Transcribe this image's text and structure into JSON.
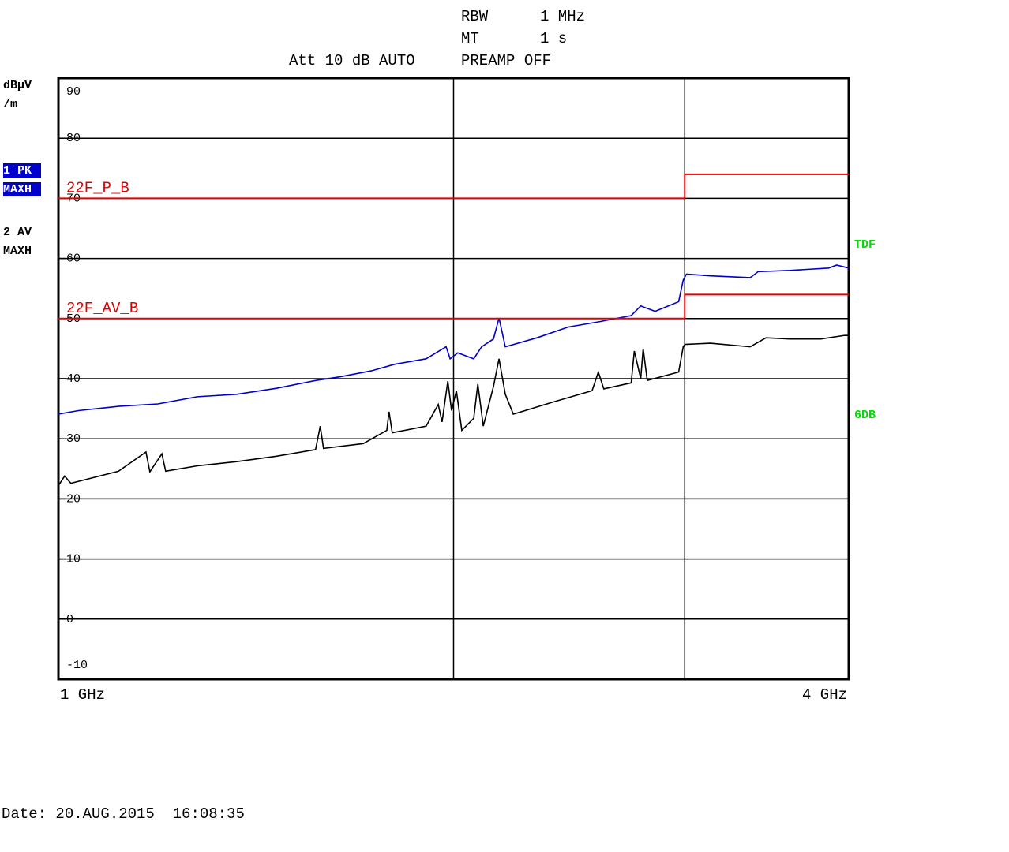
{
  "header": {
    "rbw_label": "RBW",
    "rbw_value": "1 MHz",
    "mt_label": "MT",
    "mt_value": "1 s",
    "att": "Att 10 dB AUTO",
    "preamp": "PREAMP OFF"
  },
  "chart_data": {
    "type": "line",
    "x_scale": "log",
    "y_unit": [
      "dBµV",
      "/m"
    ],
    "xlim": [
      1,
      4
    ],
    "xticks": [
      {
        "value": 1,
        "label": "1 GHz"
      },
      {
        "value": 4,
        "label": "4 GHz"
      }
    ],
    "xgrid": [
      2,
      3
    ],
    "ylim": [
      -10,
      90
    ],
    "yticks": [
      -10,
      0,
      10,
      20,
      30,
      40,
      50,
      60,
      70,
      80,
      90
    ],
    "grid": true,
    "series": [
      {
        "name": "1 PK",
        "detail": "MAXH",
        "style": "trace",
        "highlight": true,
        "color": "#0000cc",
        "x": [
          1,
          1.037,
          1.111,
          1.191,
          1.276,
          1.367,
          1.466,
          1.57,
          1.638,
          1.731,
          1.804,
          1.906,
          1.974,
          1.988,
          2.015,
          2.072,
          2.101,
          2.145,
          2.166,
          2.19,
          2.315,
          2.446,
          2.586,
          2.731,
          2.777,
          2.848,
          2.968,
          2.992,
          3.009,
          3.138,
          3.365,
          3.412,
          3.607,
          3.862,
          3.916,
          4
        ],
        "values": [
          34.1,
          34.7,
          35.4,
          35.8,
          37,
          37.4,
          38.4,
          39.7,
          40.3,
          41.3,
          42.4,
          43.3,
          45.3,
          43.3,
          44.3,
          43.3,
          45.3,
          46.6,
          50.1,
          45.3,
          46.8,
          48.6,
          49.5,
          50.5,
          52.1,
          51.2,
          52.8,
          56.4,
          57.4,
          57.1,
          56.8,
          57.8,
          58,
          58.4,
          58.9,
          58.4
        ]
      },
      {
        "name": "2 AV",
        "detail": "MAXH",
        "style": "trace",
        "highlight": false,
        "color": "#000000",
        "x": [
          1,
          1.011,
          1.022,
          1.111,
          1.166,
          1.174,
          1.199,
          1.207,
          1.276,
          1.367,
          1.466,
          1.57,
          1.583,
          1.592,
          1.707,
          1.779,
          1.786,
          1.796,
          1.906,
          1.947,
          1.96,
          1.98,
          1.993,
          2.01,
          2.029,
          2.072,
          2.087,
          2.107,
          2.145,
          2.166,
          2.19,
          2.221,
          2.38,
          2.55,
          2.578,
          2.603,
          2.731,
          2.746,
          2.777,
          2.789,
          2.809,
          2.968,
          2.992,
          3.001,
          3.138,
          3.365,
          3.46,
          3.607,
          3.809,
          3.971,
          4
        ],
        "values": [
          22.2,
          23.8,
          22.6,
          24.6,
          27.8,
          24.5,
          27.5,
          24.6,
          25.5,
          26.2,
          27.1,
          28.2,
          32.1,
          28.4,
          29.2,
          31.4,
          34.5,
          31,
          32.1,
          35.7,
          32.8,
          39.6,
          34.7,
          38,
          31.4,
          33.4,
          39.1,
          32.1,
          38.7,
          43.3,
          37.4,
          34.1,
          36.1,
          38,
          41.1,
          38.3,
          39.3,
          44.6,
          40,
          45,
          39.7,
          41.1,
          45.3,
          45.7,
          45.9,
          45.3,
          46.8,
          46.6,
          46.6,
          47.2,
          47.2
        ]
      },
      {
        "name": "22F_P_B",
        "style": "limit",
        "color": "#e00000",
        "x": [
          1,
          3,
          3,
          4
        ],
        "values": [
          70,
          70,
          74,
          74
        ]
      },
      {
        "name": "22F_AV_B",
        "style": "limit",
        "color": "#e00000",
        "x": [
          1,
          3,
          3,
          4
        ],
        "values": [
          50,
          50,
          54,
          54
        ]
      }
    ],
    "annotations": [
      {
        "text": "TDF",
        "color": "#00dd00"
      },
      {
        "text": "6DB",
        "color": "#00dd00"
      }
    ]
  },
  "footer": {
    "date": "Date: 20.AUG.2015  16:08:35"
  }
}
